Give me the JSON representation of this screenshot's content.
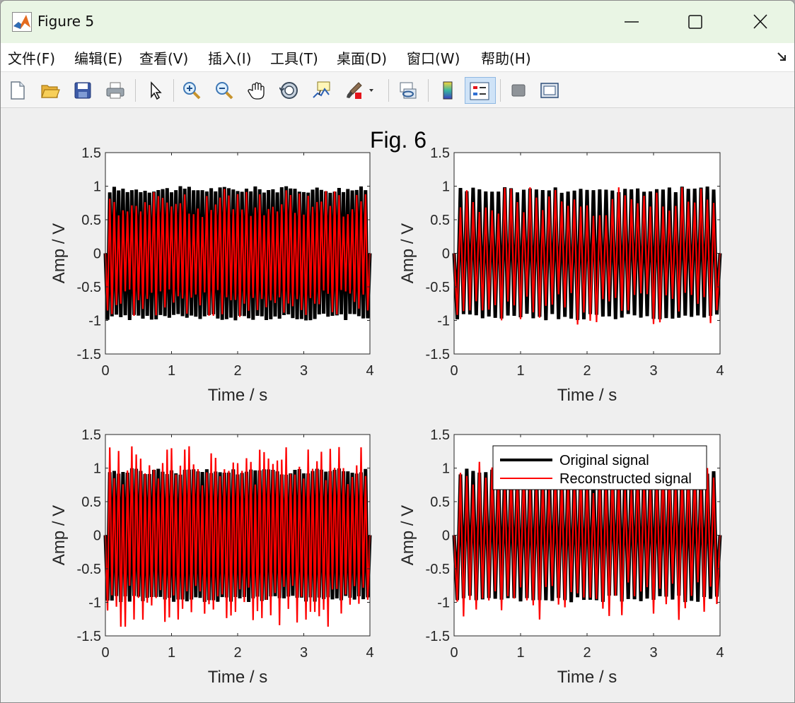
{
  "window": {
    "title": "Figure 5",
    "controls": [
      "minimize",
      "maximize",
      "close"
    ]
  },
  "menu": {
    "items": [
      {
        "label": "文件(F)"
      },
      {
        "label": "编辑(E)"
      },
      {
        "label": "查看(V)"
      },
      {
        "label": "插入(I)"
      },
      {
        "label": "工具(T)"
      },
      {
        "label": "桌面(D)"
      },
      {
        "label": "窗口(W)"
      },
      {
        "label": "帮助(H)"
      }
    ]
  },
  "toolbar": {
    "buttons": [
      "new-figure-icon",
      "open-file-icon",
      "save-icon",
      "print-icon",
      "pointer-icon",
      "zoom-in-icon",
      "zoom-out-icon",
      "pan-icon",
      "rotate-3d-icon",
      "data-cursor-icon",
      "brush-icon",
      "link-plot-icon",
      "colorbar-icon",
      "legend-icon",
      "hide-plot-tools-icon",
      "show-plot-tools-icon"
    ],
    "active": "legend-icon"
  },
  "figure": {
    "title": "Fig. 6",
    "legend": {
      "entries": [
        {
          "label": "Original signal",
          "color": "#000000"
        },
        {
          "label": "Reconstructed signal",
          "color": "#ff0000"
        }
      ],
      "location": "top-right of bottom-right subplot"
    }
  },
  "chart_data": [
    {
      "type": "line",
      "subplot": "top-left",
      "xlabel": "Time / s",
      "ylabel": "Amp / V",
      "xlim": [
        0,
        4
      ],
      "ylim": [
        -1.5,
        1.5
      ],
      "xticks": [
        "0",
        "1",
        "2",
        "3",
        "4"
      ],
      "yticks": [
        "-1.5",
        "-1",
        "-0.5",
        "0",
        "0.5",
        "1",
        "1.5"
      ],
      "series": [
        {
          "name": "Original signal",
          "color": "#000000",
          "envelope": [
            -1.0,
            1.0
          ],
          "oscillation_cycles": 60
        },
        {
          "name": "Reconstructed signal",
          "color": "#ff0000",
          "envelope": [
            -0.95,
            0.97
          ],
          "oscillation_cycles": 60
        }
      ]
    },
    {
      "type": "line",
      "subplot": "top-right",
      "xlabel": "Time / s",
      "ylabel": "Amp / V",
      "xlim": [
        0,
        4
      ],
      "ylim": [
        -1.5,
        1.5
      ],
      "xticks": [
        "0",
        "1",
        "2",
        "3",
        "4"
      ],
      "yticks": [
        "-1.5",
        "-1",
        "-0.5",
        "0",
        "0.5",
        "1",
        "1.5"
      ],
      "series": [
        {
          "name": "Original signal",
          "color": "#000000",
          "envelope": [
            -1.0,
            1.0
          ],
          "oscillation_cycles": 42
        },
        {
          "name": "Reconstructed signal",
          "color": "#ff0000",
          "envelope": [
            -1.07,
            1.0
          ],
          "oscillation_cycles": 42
        }
      ]
    },
    {
      "type": "line",
      "subplot": "bottom-left",
      "xlabel": "Time / s",
      "ylabel": "Amp / V",
      "xlim": [
        0,
        4
      ],
      "ylim": [
        -1.5,
        1.5
      ],
      "xticks": [
        "0",
        "1",
        "2",
        "3",
        "4"
      ],
      "yticks": [
        "-1.5",
        "-1",
        "-0.5",
        "0",
        "0.5",
        "1",
        "1.5"
      ],
      "series": [
        {
          "name": "Original signal",
          "color": "#000000",
          "envelope": [
            -1.0,
            1.0
          ],
          "oscillation_cycles": 60
        },
        {
          "name": "Reconstructed signal",
          "color": "#ff0000",
          "envelope": [
            -1.37,
            1.33
          ],
          "oscillation_cycles": 60
        }
      ]
    },
    {
      "type": "line",
      "subplot": "bottom-right",
      "xlabel": "Time / s",
      "ylabel": "Amp / V",
      "xlim": [
        0,
        4
      ],
      "ylim": [
        -1.5,
        1.5
      ],
      "xticks": [
        "0",
        "1",
        "2",
        "3",
        "4"
      ],
      "yticks": [
        "-1.5",
        "-1",
        "-0.5",
        "0",
        "0.5",
        "1",
        "1.5"
      ],
      "series": [
        {
          "name": "Original signal",
          "color": "#000000",
          "envelope": [
            -1.0,
            1.0
          ],
          "oscillation_cycles": 42
        },
        {
          "name": "Reconstructed signal",
          "color": "#ff0000",
          "envelope": [
            -1.27,
            1.12
          ],
          "oscillation_cycles": 42
        }
      ]
    }
  ]
}
